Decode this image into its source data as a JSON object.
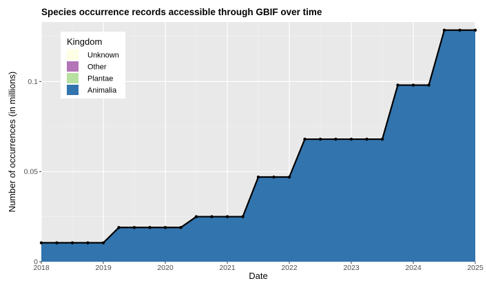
{
  "chart_data": {
    "type": "area",
    "title": "Species occurrence records accessible through GBIF over time",
    "xlabel": "Date",
    "ylabel": "Number of occurrences (in millions)",
    "xlim": [
      2018.0,
      2025.0
    ],
    "ylim": [
      0,
      0.133
    ],
    "x_ticks": [
      "2018",
      "2019",
      "2020",
      "2021",
      "2022",
      "2023",
      "2024",
      "2025"
    ],
    "y_ticks": [
      {
        "value": 0,
        "label": "0"
      },
      {
        "value": 0.05,
        "label": "0.05"
      },
      {
        "value": 0.1,
        "label": "0.1"
      }
    ],
    "grid": true,
    "legend": {
      "title": "Kingdom",
      "position": "top-left",
      "entries": [
        {
          "name": "Unknown",
          "color": "#ffffe5"
        },
        {
          "name": "Other",
          "color": "#b374b8"
        },
        {
          "name": "Plantae",
          "color": "#b8e0a0"
        },
        {
          "name": "Animalia",
          "color": "#3274ad"
        }
      ]
    },
    "series": [
      {
        "name": "Animalia",
        "color": "#3274ad",
        "x": [
          2018.0,
          2018.25,
          2018.5,
          2018.75,
          2019.0,
          2019.25,
          2019.5,
          2019.75,
          2020.0,
          2020.25,
          2020.5,
          2020.75,
          2021.0,
          2021.25,
          2021.5,
          2021.75,
          2022.0,
          2022.25,
          2022.5,
          2022.75,
          2023.0,
          2023.25,
          2023.5,
          2023.75,
          2024.0,
          2024.25,
          2024.5,
          2024.75,
          2025.0
        ],
        "values": [
          0.0105,
          0.0105,
          0.0105,
          0.0105,
          0.0105,
          0.019,
          0.019,
          0.019,
          0.019,
          0.019,
          0.025,
          0.025,
          0.025,
          0.025,
          0.047,
          0.047,
          0.047,
          0.068,
          0.068,
          0.068,
          0.068,
          0.068,
          0.068,
          0.098,
          0.098,
          0.098,
          0.1285,
          0.1285,
          0.1285
        ]
      }
    ]
  }
}
